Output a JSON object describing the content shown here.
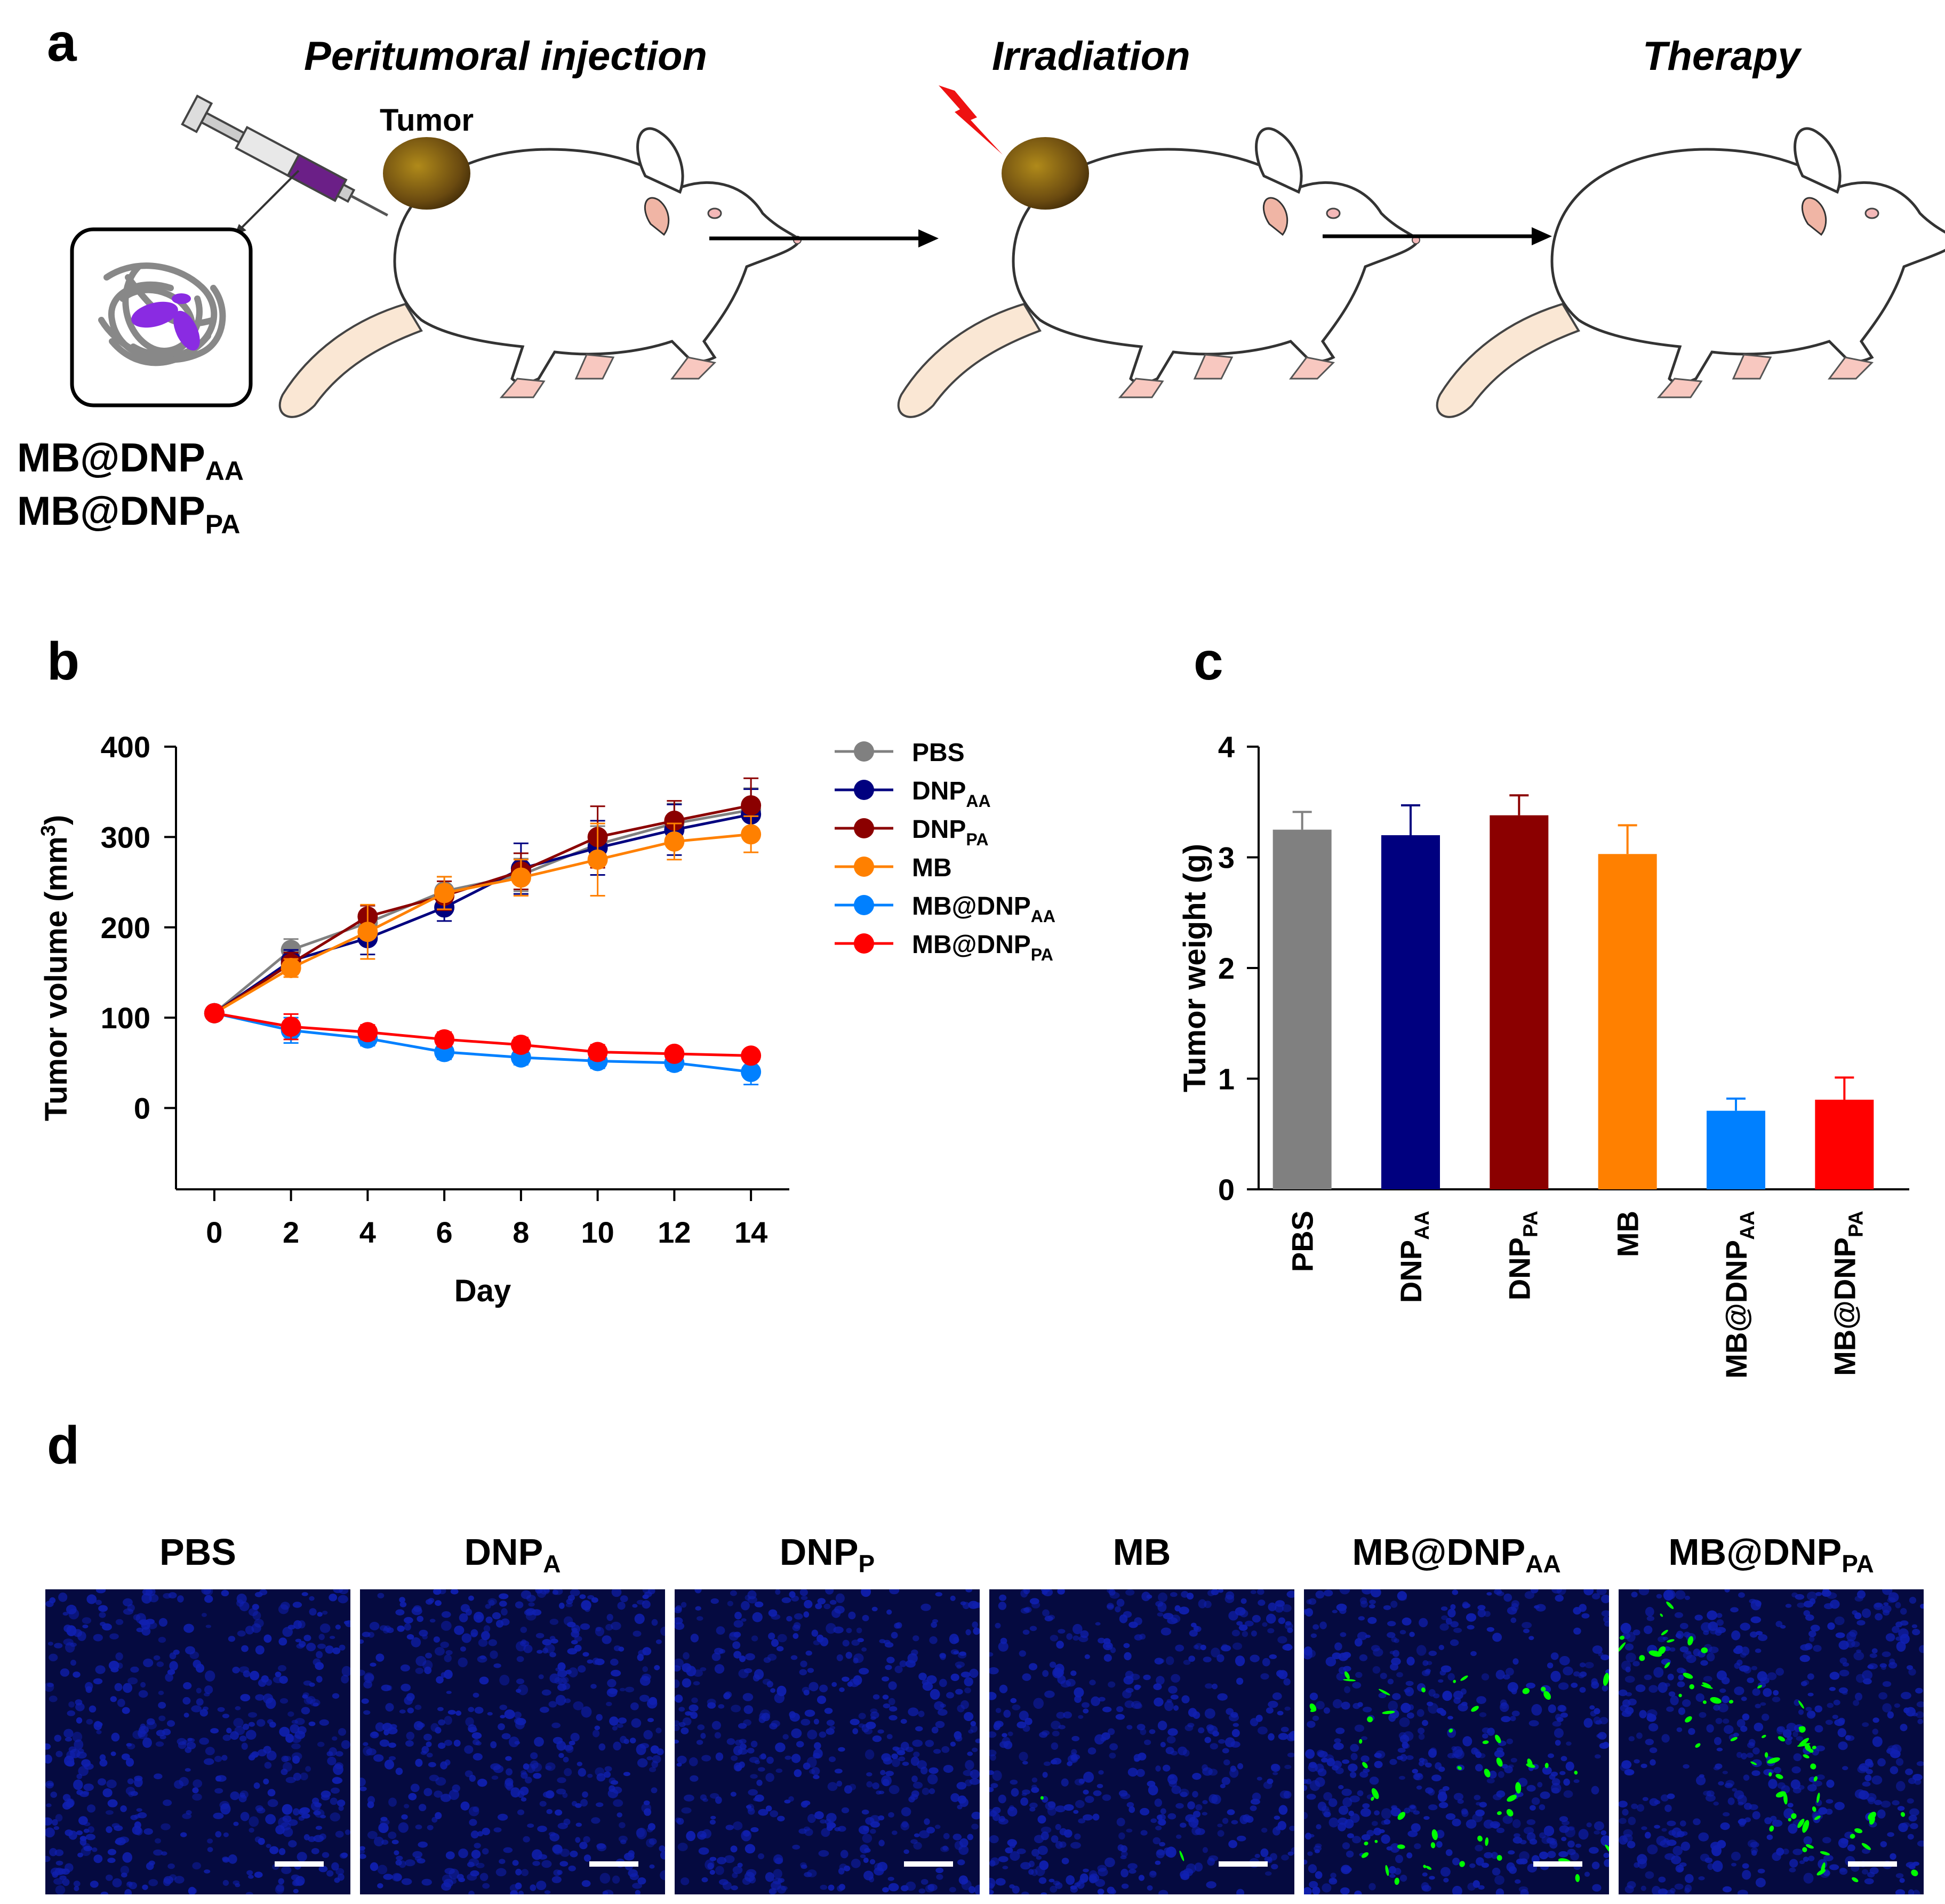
{
  "panel_a": {
    "label": "a",
    "stages": [
      "Peritumoral injection",
      "Irradiation",
      "Therapy"
    ],
    "tumor_label": "Tumor",
    "formulations": [
      {
        "base": "MB@DNP",
        "sub": "AA"
      },
      {
        "base": "MB@DNP",
        "sub": "PA"
      }
    ]
  },
  "panel_b": {
    "label": "b"
  },
  "panel_c": {
    "label": "c"
  },
  "panel_d": {
    "label": "d",
    "titles": [
      {
        "base": "PBS",
        "sub": ""
      },
      {
        "base": "DNP",
        "sub": "A"
      },
      {
        "base": "DNP",
        "sub": "P"
      },
      {
        "base": "MB",
        "sub": ""
      },
      {
        "base": "MB@DNP",
        "sub": "AA"
      },
      {
        "base": "MB@DNP",
        "sub": "PA"
      }
    ],
    "green_signal": [
      0,
      0,
      0,
      0.02,
      0.6,
      0.75
    ]
  },
  "colors": {
    "PBS": "#808080",
    "DNP_AA": "#00007f",
    "DNP_PA": "#8b0000",
    "MB": "#ff8000",
    "MB_DNP_AA": "#0080ff",
    "MB_DNP_PA": "#ff0000",
    "nuclei": "#1020b0",
    "apoptosis": "#00ff00",
    "tumor": "#8a6a10"
  },
  "chart_data": [
    {
      "type": "line",
      "panel": "b",
      "xlabel": "Day",
      "ylabel": "Tumor volume (mm",
      "ylabel_sup": "3",
      "ylabel_end": ")",
      "x": [
        0,
        2,
        4,
        6,
        8,
        10,
        12,
        14
      ],
      "xlim": [
        -1,
        15
      ],
      "ylim": [
        -90,
        400
      ],
      "yticks": [
        0,
        100,
        200,
        300,
        400
      ],
      "series": [
        {
          "name": "PBS",
          "sub": "",
          "key": "PBS",
          "values": [
            105,
            175,
            205,
            240,
            258,
            292,
            315,
            330
          ],
          "errors": [
            5,
            12,
            14,
            16,
            18,
            20,
            22,
            24
          ]
        },
        {
          "name": "DNP",
          "sub": "AA",
          "key": "DNP_AA",
          "values": [
            105,
            163,
            188,
            222,
            265,
            288,
            308,
            325
          ],
          "errors": [
            5,
            12,
            18,
            15,
            28,
            30,
            28,
            28
          ]
        },
        {
          "name": "DNP",
          "sub": "PA",
          "key": "DNP_PA",
          "values": [
            105,
            160,
            212,
            235,
            262,
            300,
            318,
            335
          ],
          "errors": [
            5,
            12,
            12,
            16,
            20,
            34,
            22,
            30
          ]
        },
        {
          "name": "MB",
          "sub": "",
          "key": "MB",
          "values": [
            105,
            155,
            195,
            238,
            255,
            275,
            295,
            303
          ],
          "errors": [
            5,
            10,
            30,
            18,
            20,
            40,
            20,
            20
          ]
        },
        {
          "name": "MB@DNP",
          "sub": "AA",
          "key": "MB_DNP_AA",
          "values": [
            105,
            86,
            77,
            62,
            56,
            52,
            50,
            40
          ],
          "errors": [
            5,
            14,
            8,
            8,
            8,
            8,
            8,
            14
          ]
        },
        {
          "name": "MB@DNP",
          "sub": "PA",
          "key": "MB_DNP_PA",
          "values": [
            105,
            90,
            84,
            76,
            70,
            62,
            60,
            58
          ],
          "errors": [
            5,
            14,
            8,
            8,
            8,
            8,
            6,
            6
          ]
        }
      ]
    },
    {
      "type": "bar",
      "panel": "c",
      "ylabel": "Tumor weight (g)",
      "ylim": [
        0,
        4
      ],
      "yticks": [
        0,
        1,
        2,
        3,
        4
      ],
      "categories": [
        {
          "base": "PBS",
          "sub": ""
        },
        {
          "base": "DNP",
          "sub": "AA"
        },
        {
          "base": "DNP",
          "sub": "PA"
        },
        {
          "base": "MB",
          "sub": ""
        },
        {
          "base": "MB@DNP",
          "sub": "AA"
        },
        {
          "base": "MB@DNP",
          "sub": "PA"
        }
      ],
      "color_keys": [
        "PBS",
        "DNP_AA",
        "DNP_PA",
        "MB",
        "MB_DNP_AA",
        "MB_DNP_PA"
      ],
      "values": [
        3.25,
        3.2,
        3.38,
        3.03,
        0.71,
        0.81
      ],
      "errors": [
        0.16,
        0.27,
        0.18,
        0.26,
        0.11,
        0.2
      ]
    }
  ]
}
